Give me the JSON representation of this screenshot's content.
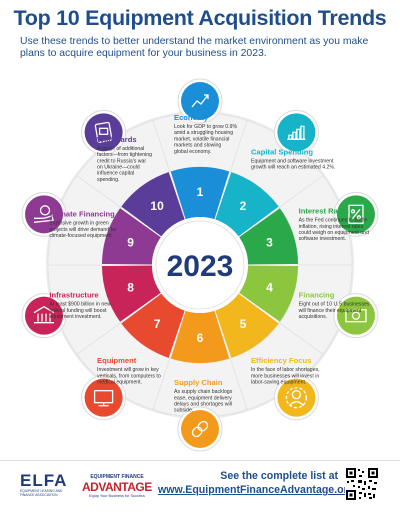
{
  "header": {
    "title": "Top 10 Equipment Acquisition Trends",
    "subtitle": "Use these trends to better understand the market environment as you make plans to acquire equipment for your business in 2023."
  },
  "center": {
    "year": "2023"
  },
  "trends": [
    {
      "number": "1",
      "title": "Economy",
      "body": [
        "Look for GDP to grow 0.9%",
        "amid a struggling housing",
        "market, volatile financial",
        "markets and slowing",
        "global economy."
      ],
      "color": "#1a8fd8",
      "icon": "chart-arrow-icon"
    },
    {
      "number": "2",
      "title": "Capital Spending",
      "body": [
        "Equipment and software investment",
        "growth will reach an estimated 4.2%."
      ],
      "color": "#17b3c9",
      "icon": "bar-chart-icon"
    },
    {
      "number": "3",
      "title": "Interest Rates",
      "body": [
        "As the Fed continues to battle",
        "inflation, rising interest rates",
        "could weigh on equipment and",
        "software investment."
      ],
      "color": "#2aa84a",
      "icon": "percent-document-icon"
    },
    {
      "number": "4",
      "title": "Financing",
      "body": [
        "Eight out of 10 U.S businesses",
        "will finance their equipment",
        "acquisitions."
      ],
      "color": "#8cc63f",
      "icon": "money-icon"
    },
    {
      "number": "5",
      "title": "Efficiency Focus",
      "body": [
        "In the face of labor shortages,",
        "more businesses will invest in",
        "labor-saving equipment."
      ],
      "color": "#f2b71c",
      "icon": "gear-person-icon"
    },
    {
      "number": "6",
      "title": "Supply Chain",
      "body": [
        "As supply chain backlogs",
        "ease, equipment delivery",
        "delays and shortages will",
        "subside."
      ],
      "color": "#f39a1d",
      "icon": "chain-link-icon"
    },
    {
      "number": "7",
      "title": "Equipment",
      "body": [
        "Investment will grow in key",
        "verticals, from computers to",
        "medical equipment."
      ],
      "color": "#e84a2f",
      "icon": "monitor-icon"
    },
    {
      "number": "8",
      "title": "Infrastructure",
      "body": [
        "At least $900 billion in new",
        "federal funding will boost",
        "equipment investment."
      ],
      "color": "#c8245a",
      "icon": "building-icon"
    },
    {
      "number": "9",
      "title": "Climate Financing",
      "body": [
        "Explosive growth in green",
        "projects will drive demand for",
        "climate-focused equipment."
      ],
      "color": "#8e3a92",
      "icon": "hand-coin-icon"
    },
    {
      "number": "10",
      "title": "Wild Cards",
      "body": [
        "A range of additional",
        "factors—from tightening",
        "credit to Russia's war",
        "on Ukraine—could",
        "influence capital",
        "spending."
      ],
      "color": "#5a3d99",
      "icon": "wild-card-icon"
    }
  ],
  "footer": {
    "logo_left_big": "ELFA",
    "logo_left_small": "EQUIPMENT LEASING AND FINANCE ASSOCIATION",
    "logo_right_top": "EQUIPMENT FINANCE",
    "logo_right_main": "ADVANTAGE",
    "logo_right_tag": "Equip Your Business for Success",
    "cta_line1": "See the complete list at",
    "cta_line2": "www.EquipmentFinanceAdvantage.org."
  }
}
